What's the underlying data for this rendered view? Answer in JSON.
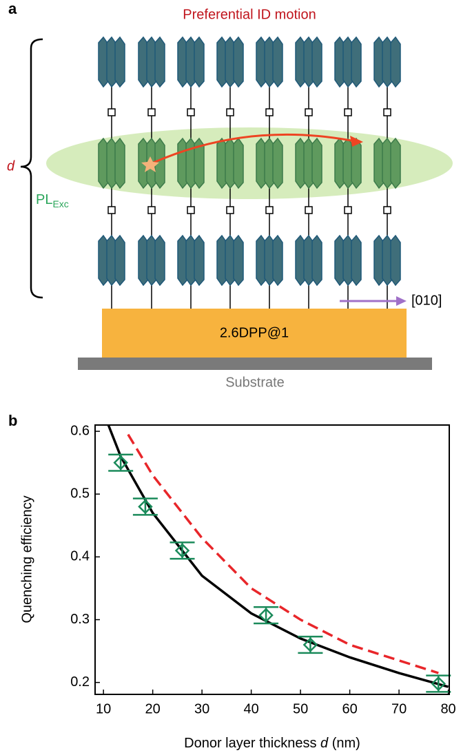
{
  "panel_a": {
    "label": "a",
    "title": "Preferential ID motion",
    "d_label": "d",
    "pl_label": "PL",
    "pl_subscript": "Exc",
    "direction_label": "[010]",
    "layer_label": "2.6DPP@1",
    "substrate_label": "Substrate"
  },
  "chart_data": {
    "type": "scatter",
    "panel_label": "b",
    "x_label": "Donor layer thickness ",
    "x_label_italic": "d",
    "x_label_unit": " (nm)",
    "y_label": "Quenching efficiency",
    "x": [
      13.5,
      18.5,
      26,
      43,
      52,
      78
    ],
    "values": [
      0.55,
      0.48,
      0.41,
      0.307,
      0.26,
      0.198
    ],
    "errors": [
      0.013,
      0.013,
      0.013,
      0.013,
      0.013,
      0.013
    ],
    "color": "#1a8a5a",
    "curves": [
      {
        "color": "#000000",
        "style": "solid",
        "x": [
          11,
          13.5,
          20,
          30,
          40,
          50,
          60,
          70,
          80
        ],
        "values": [
          0.61,
          0.56,
          0.47,
          0.37,
          0.31,
          0.27,
          0.24,
          0.215,
          0.193
        ]
      },
      {
        "color": "#e8262a",
        "style": "dashed",
        "x": [
          15,
          20,
          30,
          40,
          50,
          60,
          70,
          78
        ],
        "values": [
          0.595,
          0.53,
          0.43,
          0.35,
          0.3,
          0.26,
          0.235,
          0.215
        ]
      }
    ],
    "xlim": [
      8.3,
      80.2
    ],
    "ylim": [
      0.181,
      0.61
    ],
    "xticks": [
      10,
      20,
      30,
      40,
      50,
      60,
      70,
      80
    ],
    "yticks": [
      0.2,
      0.3,
      0.4,
      0.5,
      0.6
    ]
  }
}
